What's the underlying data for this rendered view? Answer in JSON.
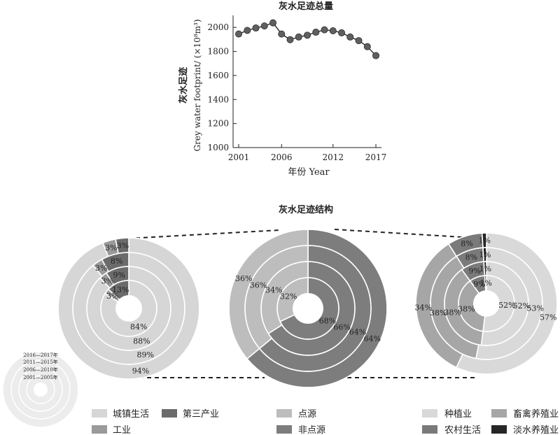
{
  "chart_data": [
    {
      "type": "line",
      "title": "灰水足迹总量",
      "ylabel_cn": "灰水足迹",
      "ylabel_en": "Grey water footprint/ (×10⁸m³)",
      "xlabel": "年份 Year",
      "x_ticks": [
        "2001",
        "2006",
        "2012",
        "2017"
      ],
      "y_ticks": [
        "1000",
        "1200",
        "1400",
        "1600",
        "1800",
        "2000"
      ],
      "xlim": [
        2001,
        2017
      ],
      "ylim": [
        1000,
        2100
      ],
      "color": "#606060",
      "x": [
        2001,
        2002,
        2003,
        2004,
        2005,
        2006,
        2007,
        2008,
        2009,
        2010,
        2011,
        2012,
        2013,
        2014,
        2015,
        2016,
        2017
      ],
      "values": [
        1945,
        1975,
        1995,
        2012,
        2038,
        1945,
        1898,
        1920,
        1935,
        1960,
        1980,
        1972,
        1955,
        1920,
        1890,
        1840,
        1765
      ]
    },
    {
      "type": "pie",
      "title": "灰水足迹结构",
      "ring_key": [
        "2016—2017年",
        "2011—2015年",
        "2006—2010年",
        "2001—2005年"
      ],
      "groups": [
        {
          "name": "structure-a",
          "categories": [
            "城镇生活",
            "工业",
            "第三产业"
          ],
          "colors": [
            "#d6d6d6",
            "#9a9a9a",
            "#6b6b6b"
          ],
          "rings": [
            {
              "period": "2016—2017年",
              "values": [
                94,
                3,
                3
              ],
              "labels": [
                "94%",
                "3%",
                "3%"
              ]
            },
            {
              "period": "2011—2015年",
              "values": [
                89,
                3,
                8
              ],
              "labels": [
                "89%",
                "3%",
                "8%"
              ]
            },
            {
              "period": "2006—2010年",
              "values": [
                88,
                3,
                9
              ],
              "labels": [
                "88%",
                "3%",
                "9%"
              ]
            },
            {
              "period": "2001—2005年",
              "values": [
                84,
                3,
                13
              ],
              "labels": [
                "84%",
                "3%",
                "13%"
              ]
            }
          ]
        },
        {
          "name": "structure-b",
          "categories": [
            "点源",
            "非点源"
          ],
          "colors": [
            "#bdbdbd",
            "#7d7d7d"
          ],
          "rings": [
            {
              "period": "2016—2017年",
              "values": [
                36,
                64
              ],
              "labels": [
                "36%",
                "64%"
              ]
            },
            {
              "period": "2011—2015年",
              "values": [
                36,
                64
              ],
              "labels": [
                "36%",
                "64%"
              ]
            },
            {
              "period": "2006—2010年",
              "values": [
                34,
                66
              ],
              "labels": [
                "34%",
                "66%"
              ]
            },
            {
              "period": "2001—2005年",
              "values": [
                32,
                68
              ],
              "labels": [
                "32%",
                "68%"
              ]
            }
          ]
        },
        {
          "name": "structure-c",
          "categories": [
            "种植业",
            "畜禽养殖业",
            "农村生活",
            "淡水养殖业"
          ],
          "colors": [
            "#d9d9d9",
            "#a6a6a6",
            "#7a7a7a",
            "#262626"
          ],
          "rings": [
            {
              "period": "2016—2017年",
              "values": [
                57,
                34,
                8,
                1
              ],
              "labels": [
                "57%",
                "34%",
                "8%",
                "1%"
              ]
            },
            {
              "period": "2011—2015年",
              "values": [
                53,
                38,
                8,
                1
              ],
              "labels": [
                "53%",
                "38%",
                "8%",
                "1%"
              ]
            },
            {
              "period": "2006—2010年",
              "values": [
                52,
                38,
                9,
                1
              ],
              "labels": [
                "52%",
                "38%",
                "9%",
                "1%"
              ]
            },
            {
              "period": "2001—2005年",
              "values": [
                52,
                38,
                9,
                1
              ],
              "labels": [
                "52%",
                "38%",
                "9%",
                "1%"
              ]
            }
          ]
        }
      ],
      "legend": [
        {
          "label": "城镇生活",
          "color": "#d6d6d6"
        },
        {
          "label": "第三产业",
          "color": "#6b6b6b"
        },
        {
          "label": "工业",
          "color": "#9a9a9a"
        },
        {
          "label": "点源",
          "color": "#bdbdbd"
        },
        {
          "label": "非点源",
          "color": "#7d7d7d"
        },
        {
          "label": "种植业",
          "color": "#d9d9d9"
        },
        {
          "label": "畜禽养殖业",
          "color": "#a6a6a6"
        },
        {
          "label": "农村生活",
          "color": "#7a7a7a"
        },
        {
          "label": "淡水养殖业",
          "color": "#262626"
        }
      ]
    }
  ]
}
